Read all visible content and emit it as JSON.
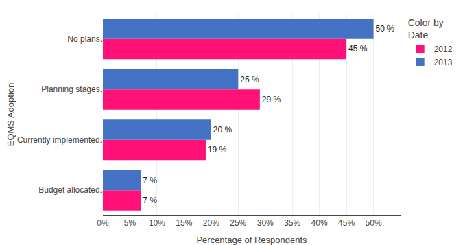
{
  "chart_data": {
    "type": "bar",
    "orientation": "horizontal",
    "categories": [
      "Budget allocated.",
      "Currently implemented.",
      "Planning stages.",
      "No plans."
    ],
    "series": [
      {
        "name": "2012",
        "color": "#FF1177",
        "values": [
          7,
          19,
          29,
          45
        ],
        "value_labels": [
          "7 %",
          "19 %",
          "29 %",
          "45 %"
        ]
      },
      {
        "name": "2013",
        "color": "#4472C4",
        "values": [
          7,
          20,
          25,
          50
        ],
        "value_labels": [
          "7 %",
          "20 %",
          "25 %",
          "50 %"
        ]
      }
    ],
    "xlabel": "Percentage of Respondents",
    "ylabel": "EQMS Adoption",
    "legend_title": "Color by\nDate",
    "legend": "upper right",
    "xlim": [
      0,
      55
    ],
    "xticks": [
      {
        "value": 0,
        "label": "0%"
      },
      {
        "value": 5,
        "label": "5%"
      },
      {
        "value": 10,
        "label": "10%"
      },
      {
        "value": 15,
        "label": "15%"
      },
      {
        "value": 20,
        "label": "20%"
      },
      {
        "value": 25,
        "label": "25%"
      },
      {
        "value": 30,
        "label": "30%"
      },
      {
        "value": 35,
        "label": "35%"
      },
      {
        "value": 40,
        "label": "40%"
      },
      {
        "value": 45,
        "label": "45%"
      },
      {
        "value": 50,
        "label": "50%"
      }
    ],
    "grid": true,
    "data_labels": true
  }
}
